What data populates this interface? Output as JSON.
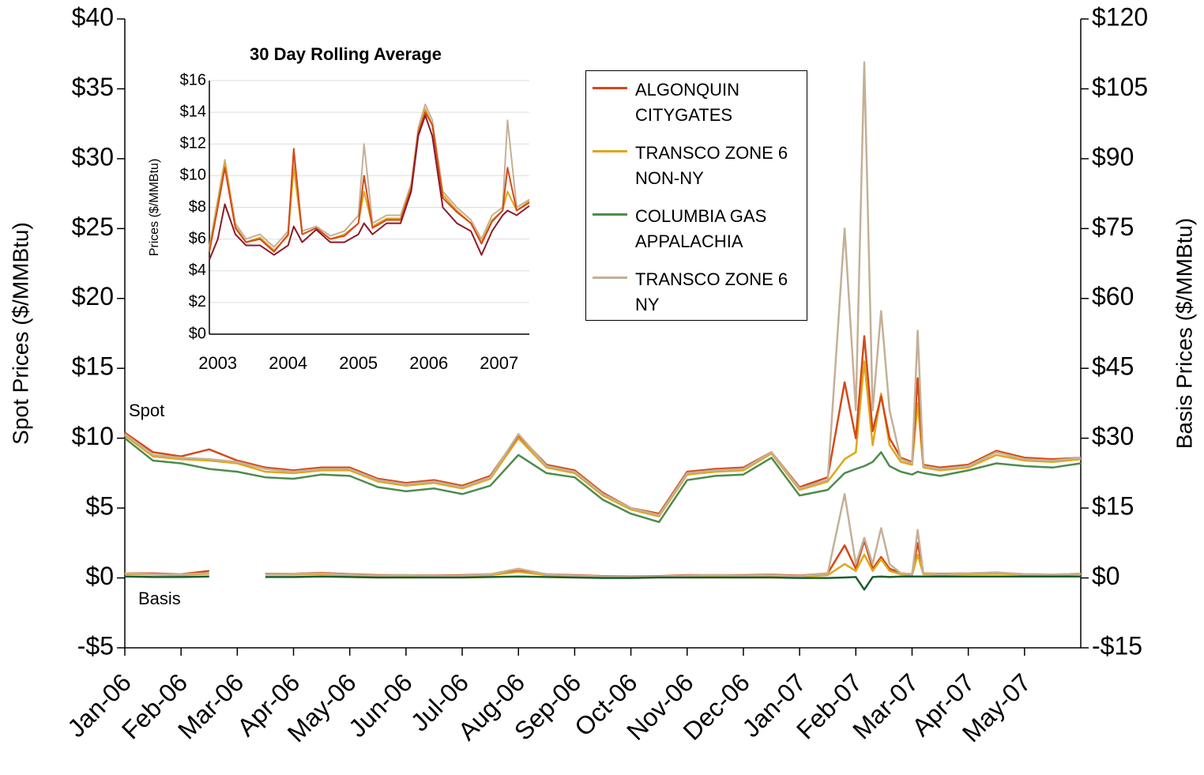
{
  "chart_data": [
    {
      "type": "line",
      "ylabel": "Spot Prices ($/MMBtu)",
      "y2label": "Basis Prices ($/MMBtu)",
      "annotations": [
        "Spot",
        "Basis"
      ],
      "legend": "top-right",
      "x": [
        0,
        0.5,
        1,
        1.5,
        2,
        2.5,
        3,
        3.5,
        4,
        4.5,
        5,
        5.5,
        6,
        6.5,
        7,
        7.5,
        8,
        8.5,
        9,
        9.5,
        10,
        10.5,
        11,
        11.5,
        12,
        12.5,
        12.8,
        13,
        13.15,
        13.3,
        13.45,
        13.6,
        13.8,
        14,
        14.1,
        14.2,
        14.5,
        15,
        15.5,
        16,
        16.5,
        17
      ],
      "xlim": [
        0,
        17
      ],
      "xticks": [
        {
          "value": 0,
          "label": "Jan-06"
        },
        {
          "value": 1,
          "label": "Feb-06"
        },
        {
          "value": 2,
          "label": "Mar-06"
        },
        {
          "value": 3,
          "label": "Apr-06"
        },
        {
          "value": 4,
          "label": "May-06"
        },
        {
          "value": 5,
          "label": "Jun-06"
        },
        {
          "value": 6,
          "label": "Jul-06"
        },
        {
          "value": 7,
          "label": "Aug-06"
        },
        {
          "value": 8,
          "label": "Sep-06"
        },
        {
          "value": 9,
          "label": "Oct-06"
        },
        {
          "value": 10,
          "label": "Nov-06"
        },
        {
          "value": 11,
          "label": "Dec-06"
        },
        {
          "value": 12,
          "label": "Jan-07"
        },
        {
          "value": 13,
          "label": "Feb-07"
        },
        {
          "value": 14,
          "label": "Mar-07"
        },
        {
          "value": 15,
          "label": "Apr-07"
        },
        {
          "value": 16,
          "label": "May-07"
        }
      ],
      "ylim": [
        -5,
        40
      ],
      "yticks": [
        {
          "value": -5,
          "label": "-$5"
        },
        {
          "value": 0,
          "label": "$0"
        },
        {
          "value": 5,
          "label": "$5"
        },
        {
          "value": 10,
          "label": "$10"
        },
        {
          "value": 15,
          "label": "$15"
        },
        {
          "value": 20,
          "label": "$20"
        },
        {
          "value": 25,
          "label": "$25"
        },
        {
          "value": 30,
          "label": "$30"
        },
        {
          "value": 35,
          "label": "$35"
        },
        {
          "value": 40,
          "label": "$40"
        }
      ],
      "y2lim": [
        -15,
        120
      ],
      "y2ticks": [
        {
          "value": -15,
          "label": "-$15"
        },
        {
          "value": 0,
          "label": "$0"
        },
        {
          "value": 15,
          "label": "$15"
        },
        {
          "value": 30,
          "label": "$30"
        },
        {
          "value": 45,
          "label": "$45"
        },
        {
          "value": 60,
          "label": "$60"
        },
        {
          "value": 75,
          "label": "$75"
        },
        {
          "value": 90,
          "label": "$90"
        },
        {
          "value": 105,
          "label": "$105"
        },
        {
          "value": 120,
          "label": "$120"
        }
      ],
      "series": [
        {
          "name": "ALGONQUIN CITYGATES",
          "color": "#d4491a",
          "values": [
            10.4,
            9.0,
            8.7,
            9.2,
            8.4,
            7.9,
            7.7,
            7.9,
            7.9,
            7.1,
            6.8,
            7.0,
            6.6,
            7.3,
            10.2,
            8.1,
            7.7,
            6.1,
            5.0,
            4.6,
            7.6,
            7.8,
            7.9,
            9.0,
            6.5,
            7.2,
            14.0,
            10.0,
            17.3,
            10.5,
            13.0,
            10.0,
            8.6,
            8.3,
            14.3,
            8.1,
            7.9,
            8.1,
            9.1,
            8.6,
            8.5,
            8.6
          ]
        },
        {
          "name": "TRANSCO ZONE 6 NON-NY",
          "color": "#e0a61a",
          "values": [
            10.2,
            8.7,
            8.5,
            8.4,
            8.2,
            7.6,
            7.5,
            7.7,
            7.7,
            6.9,
            6.6,
            6.8,
            6.4,
            7.1,
            10.0,
            7.9,
            7.5,
            5.9,
            4.9,
            4.4,
            7.4,
            7.6,
            7.7,
            8.9,
            6.3,
            6.9,
            8.5,
            9.0,
            15.5,
            9.5,
            13.2,
            9.5,
            8.3,
            8.1,
            12.5,
            7.9,
            7.7,
            7.9,
            8.8,
            8.4,
            8.3,
            8.5
          ]
        },
        {
          "name": "COLUMBIA GAS APPALACHIA",
          "color": "#4e8b4e",
          "values": [
            10.0,
            8.4,
            8.2,
            7.8,
            7.6,
            7.2,
            7.1,
            7.4,
            7.3,
            6.5,
            6.2,
            6.4,
            6.0,
            6.6,
            8.8,
            7.5,
            7.2,
            5.6,
            4.6,
            4.0,
            7.0,
            7.3,
            7.4,
            8.6,
            5.9,
            6.3,
            7.5,
            7.8,
            8.0,
            8.3,
            9.0,
            8.0,
            7.6,
            7.4,
            7.6,
            7.5,
            7.3,
            7.7,
            8.2,
            8.0,
            7.9,
            8.2
          ]
        },
        {
          "name": "TRANSCO ZONE 6 NY",
          "color": "#c4b096",
          "values": [
            10.3,
            8.8,
            8.6,
            8.5,
            8.3,
            7.8,
            7.6,
            7.8,
            7.8,
            7.0,
            6.7,
            6.9,
            6.5,
            7.2,
            10.3,
            8.0,
            7.6,
            6.0,
            5.0,
            4.5,
            7.5,
            7.7,
            7.8,
            9.0,
            6.4,
            7.0,
            25,
            12,
            36.9,
            12,
            19.1,
            12,
            8.5,
            8.2,
            17.7,
            8.0,
            7.8,
            8.0,
            9.0,
            8.5,
            8.4,
            8.6
          ]
        },
        {
          "axis": "y2",
          "color": "#d4491a",
          "values": [
            1.0,
            1.0,
            0.8,
            1.5,
            null,
            0.9,
            0.9,
            1.1,
            0.8,
            0.6,
            0.6,
            0.5,
            0.6,
            0.8,
            1.5,
            0.8,
            0.6,
            0.4,
            0.3,
            0.4,
            0.6,
            0.6,
            0.6,
            0.7,
            0.5,
            1.0,
            7,
            2,
            8,
            2,
            4.5,
            2,
            1.0,
            0.8,
            7.5,
            1.0,
            0.9,
            1.0,
            1.1,
            0.8,
            0.7,
            0.9
          ]
        },
        {
          "axis": "y2",
          "color": "#e0a61a",
          "values": [
            0.8,
            0.7,
            0.6,
            0.9,
            null,
            0.7,
            0.7,
            0.8,
            0.6,
            0.4,
            0.5,
            0.3,
            0.4,
            0.6,
            1.3,
            0.6,
            0.4,
            0.2,
            0.1,
            0.2,
            0.4,
            0.5,
            0.4,
            0.5,
            0.3,
            0.6,
            3,
            1.5,
            5,
            1.5,
            4,
            1.5,
            0.8,
            0.6,
            5,
            0.8,
            0.7,
            0.8,
            0.9,
            0.7,
            0.6,
            0.8
          ]
        },
        {
          "axis": "y2",
          "color": "#c4b096",
          "values": [
            1.0,
            0.8,
            0.8,
            1.0,
            null,
            0.8,
            0.9,
            1.0,
            0.7,
            0.5,
            0.6,
            0.4,
            0.5,
            0.8,
            2.0,
            0.8,
            0.5,
            0.3,
            0.2,
            0.3,
            0.5,
            0.6,
            0.5,
            0.6,
            0.4,
            1.0,
            18,
            3,
            8.6,
            3,
            10.7,
            3,
            1.0,
            0.8,
            10.3,
            1.0,
            0.8,
            1.0,
            1.2,
            0.8,
            0.7,
            0.9
          ]
        },
        {
          "axis": "y2",
          "color": "#1d5e2e",
          "values": [
            0.3,
            0.2,
            0.2,
            0.3,
            null,
            0.2,
            0.2,
            0.3,
            0.2,
            0.1,
            0.1,
            0.1,
            0.1,
            0.2,
            0.3,
            0.2,
            0.1,
            0.0,
            0.0,
            0.1,
            0.1,
            0.1,
            0.1,
            0.1,
            0.0,
            0.0,
            0.1,
            0.2,
            -2.5,
            0.2,
            0.3,
            0.2,
            0.3,
            0.3,
            0.3,
            0.3,
            0.3,
            0.3,
            0.3,
            0.3,
            0.3,
            0.3
          ]
        }
      ]
    },
    {
      "type": "line",
      "title": "30 Day Rolling Average",
      "ylabel": "Prices ($/MMBtu)",
      "grid": true,
      "x": [
        2002.88,
        2003.0,
        2003.1,
        2003.25,
        2003.4,
        2003.6,
        2003.8,
        2004.0,
        2004.08,
        2004.2,
        2004.4,
        2004.6,
        2004.8,
        2005.0,
        2005.08,
        2005.2,
        2005.4,
        2005.6,
        2005.75,
        2005.85,
        2005.95,
        2006.05,
        2006.2,
        2006.4,
        2006.6,
        2006.75,
        2006.9,
        2007.05,
        2007.12,
        2007.25,
        2007.43
      ],
      "xlim": [
        2002.88,
        2007.43
      ],
      "xticks": [
        2003,
        2004,
        2005,
        2006,
        2007
      ],
      "ylim": [
        0,
        16
      ],
      "yticks": [
        {
          "value": 0,
          "label": "$0"
        },
        {
          "value": 2,
          "label": "$2"
        },
        {
          "value": 4,
          "label": "$4"
        },
        {
          "value": 6,
          "label": "$6"
        },
        {
          "value": 8,
          "label": "$8"
        },
        {
          "value": 10,
          "label": "$10"
        },
        {
          "value": 12,
          "label": "$12"
        },
        {
          "value": 14,
          "label": "$14"
        },
        {
          "value": 16,
          "label": "$16"
        }
      ],
      "series": [
        {
          "color": "#c4b096",
          "values": [
            5.5,
            8.5,
            11,
            7,
            6,
            6.3,
            5.5,
            6.5,
            11,
            6.5,
            6.8,
            6.2,
            6.5,
            7.5,
            12,
            7,
            7.5,
            7.5,
            9.5,
            13,
            14.5,
            13.5,
            9,
            8,
            7.2,
            6,
            7.5,
            8,
            13.5,
            8,
            8.5
          ]
        },
        {
          "color": "#e0a61a",
          "values": [
            5.3,
            8.3,
            10.8,
            6.8,
            5.8,
            6.1,
            5.3,
            6.2,
            10.5,
            6.3,
            6.7,
            6,
            6.3,
            7,
            9,
            6.8,
            7.3,
            7.3,
            9.3,
            12.8,
            14.2,
            13.2,
            8.8,
            7.8,
            7,
            5.8,
            7.2,
            7.8,
            9,
            7.8,
            8.4
          ]
        },
        {
          "color": "#d4491a",
          "values": [
            5.2,
            8,
            10.5,
            6.7,
            5.8,
            6,
            5.2,
            6.3,
            11.7,
            6.3,
            6.7,
            6,
            6.2,
            7,
            10,
            6.7,
            7.2,
            7.2,
            9.2,
            12.7,
            14,
            13.2,
            8.6,
            7.7,
            7,
            5.7,
            7.1,
            7.8,
            10.5,
            7.8,
            8.3
          ]
        },
        {
          "color": "#8b1a2a",
          "values": [
            4.7,
            6.0,
            8.2,
            6.3,
            5.6,
            5.6,
            5,
            5.6,
            6.8,
            5.8,
            6.6,
            5.8,
            5.8,
            6.3,
            7,
            6.3,
            7,
            7,
            9,
            12.5,
            13.8,
            12.5,
            8,
            7,
            6.5,
            5,
            6.5,
            7.5,
            7.8,
            7.5,
            8.1
          ]
        }
      ]
    }
  ]
}
